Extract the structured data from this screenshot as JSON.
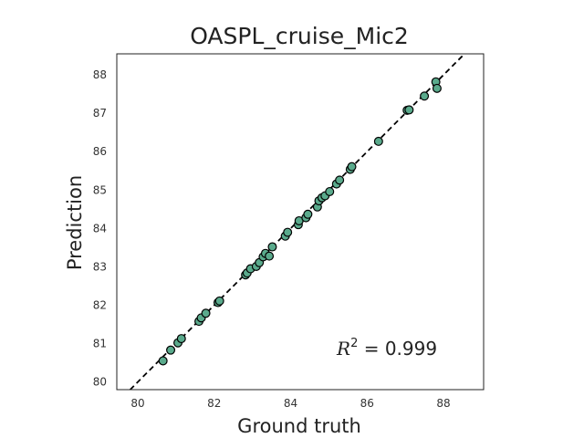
{
  "chart_data": {
    "type": "scatter",
    "title": "OASPL_cruise_Mic2",
    "xlabel": "Ground truth",
    "ylabel": "Prediction",
    "xlim": [
      79.45,
      89.05
    ],
    "ylim": [
      79.8,
      88.55
    ],
    "xticks": [
      80,
      82,
      84,
      86,
      88
    ],
    "yticks": [
      80,
      81,
      82,
      83,
      84,
      85,
      86,
      87,
      88
    ],
    "grid": false,
    "reference_line": {
      "style": "dashed",
      "color": "#000000",
      "slope": 1,
      "intercept": 0
    },
    "annotation": {
      "symbol": "R",
      "superscript": "2",
      "text": " = 0.999"
    },
    "marker_color": "#5aaa8c",
    "marker_edge_color": "#000000",
    "points": [
      {
        "x": 80.66,
        "y": 80.55
      },
      {
        "x": 80.86,
        "y": 80.83
      },
      {
        "x": 81.05,
        "y": 81.02
      },
      {
        "x": 81.14,
        "y": 81.13
      },
      {
        "x": 81.6,
        "y": 81.58
      },
      {
        "x": 81.66,
        "y": 81.67
      },
      {
        "x": 81.78,
        "y": 81.79
      },
      {
        "x": 82.1,
        "y": 82.07
      },
      {
        "x": 82.14,
        "y": 82.11
      },
      {
        "x": 82.82,
        "y": 82.79
      },
      {
        "x": 82.86,
        "y": 82.84
      },
      {
        "x": 82.95,
        "y": 82.95
      },
      {
        "x": 83.1,
        "y": 83.01
      },
      {
        "x": 83.18,
        "y": 83.11
      },
      {
        "x": 83.28,
        "y": 83.26
      },
      {
        "x": 83.34,
        "y": 83.35
      },
      {
        "x": 83.44,
        "y": 83.28
      },
      {
        "x": 83.52,
        "y": 83.52
      },
      {
        "x": 83.86,
        "y": 83.8
      },
      {
        "x": 83.92,
        "y": 83.9
      },
      {
        "x": 84.2,
        "y": 84.1
      },
      {
        "x": 84.22,
        "y": 84.2
      },
      {
        "x": 84.4,
        "y": 84.28
      },
      {
        "x": 84.45,
        "y": 84.37
      },
      {
        "x": 84.7,
        "y": 84.56
      },
      {
        "x": 84.74,
        "y": 84.72
      },
      {
        "x": 84.82,
        "y": 84.8
      },
      {
        "x": 84.9,
        "y": 84.85
      },
      {
        "x": 85.02,
        "y": 84.96
      },
      {
        "x": 85.2,
        "y": 85.16
      },
      {
        "x": 85.28,
        "y": 85.26
      },
      {
        "x": 85.56,
        "y": 85.54
      },
      {
        "x": 85.6,
        "y": 85.61
      },
      {
        "x": 86.3,
        "y": 86.27
      },
      {
        "x": 87.05,
        "y": 87.08
      },
      {
        "x": 87.1,
        "y": 87.09
      },
      {
        "x": 87.5,
        "y": 87.45
      },
      {
        "x": 87.8,
        "y": 87.82
      },
      {
        "x": 87.83,
        "y": 87.65
      }
    ]
  }
}
